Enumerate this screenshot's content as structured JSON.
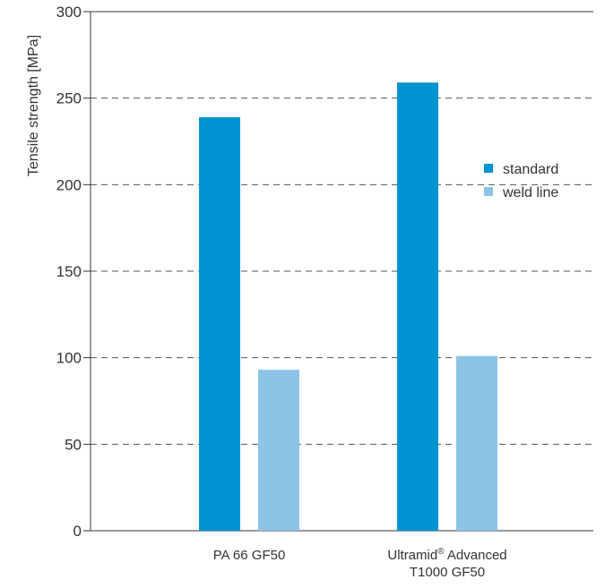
{
  "chart_data": {
    "type": "bar",
    "title": "",
    "ylabel": "Tensile strength [MPa]",
    "xlabel": "",
    "ylim": [
      0,
      300
    ],
    "yticks": [
      0,
      50,
      100,
      150,
      200,
      250,
      300
    ],
    "grid": true,
    "legend_position": "right",
    "categories": [
      {
        "name": "PA 66 GF50",
        "lines": [
          "PA 66 GF50"
        ]
      },
      {
        "name": "Ultramid® Advanced T1000 GF50",
        "lines": [
          "Ultramid® Advanced",
          "T1000 GF50"
        ]
      }
    ],
    "series": [
      {
        "name": "standard",
        "color": "#0093d1",
        "values": [
          239,
          259
        ]
      },
      {
        "name": "weld line",
        "color": "#8cc4e6",
        "values": [
          93,
          101
        ]
      }
    ]
  }
}
